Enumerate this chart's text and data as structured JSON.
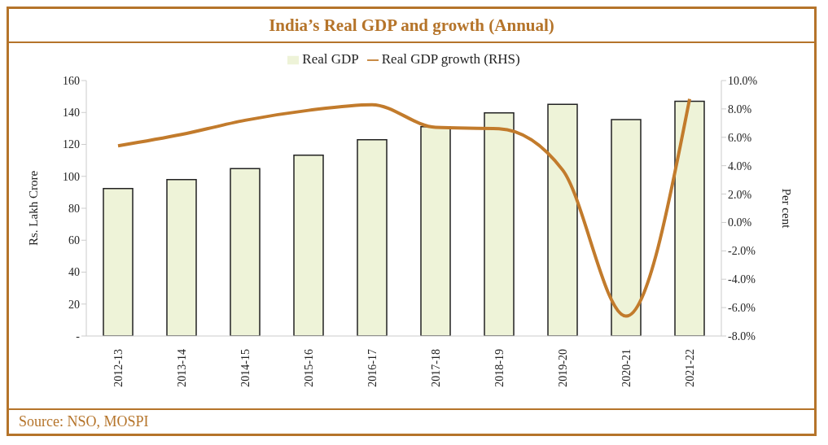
{
  "chart_data": {
    "type": "bar",
    "title": "India’s Real GDP and growth (Annual)",
    "ylabel": "Rs. Lakh Crore",
    "y2label": "Per cent",
    "categories": [
      "2012-13",
      "2013-14",
      "2014-15",
      "2015-16",
      "2016-17",
      "2017-18",
      "2018-19",
      "2019-20",
      "2020-21",
      "2021-22"
    ],
    "series": [
      {
        "name": "Real GDP",
        "color": "#eef3d8",
        "values": [
          92.4,
          97.9,
          104.9,
          113.3,
          122.9,
          131.1,
          139.7,
          145.1,
          135.6,
          147.0
        ]
      },
      {
        "name": "Real GDP growth (RHS)",
        "type": "line",
        "axis": "y2",
        "color": "#c27b2c",
        "values": [
          5.4,
          6.2,
          7.2,
          7.9,
          8.3,
          6.7,
          6.6,
          3.7,
          -6.6,
          8.7
        ]
      }
    ],
    "ylim": [
      0,
      160
    ],
    "yticks": [
      {
        "value": 0,
        "label": "-"
      },
      20,
      40,
      60,
      80,
      100,
      120,
      140,
      160
    ],
    "y2lim": [
      -8,
      10
    ],
    "y2ticks": [
      {
        "value": -8,
        "label": "-8.0%"
      },
      {
        "value": -6,
        "label": "-6.0%"
      },
      {
        "value": -4,
        "label": "-4.0%"
      },
      {
        "value": -2,
        "label": "-2.0%"
      },
      {
        "value": 0,
        "label": "0.0%"
      },
      {
        "value": 2,
        "label": "2.0%"
      },
      {
        "value": 4,
        "label": "4.0%"
      },
      {
        "value": 6,
        "label": "6.0%"
      },
      {
        "value": 8,
        "label": "8.0%"
      },
      {
        "value": 10,
        "label": "10.0%"
      }
    ],
    "grid": false,
    "legend": "top",
    "marker": "none",
    "line_style": "solid",
    "annotations": [
      "Source: NSO, MOSPI"
    ]
  }
}
